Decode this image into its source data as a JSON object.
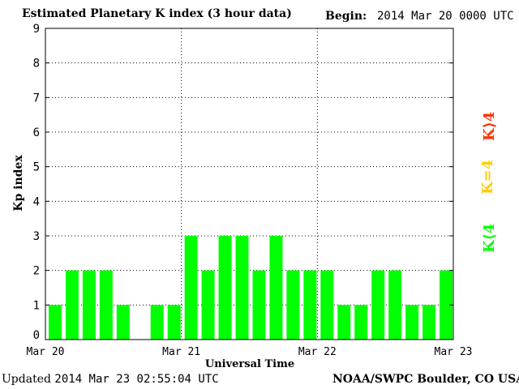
{
  "header": {
    "title": "Estimated Planetary K index (3 hour data)",
    "begin_label": "Begin:",
    "begin_value": "2014 Mar 20 0000 UTC"
  },
  "footer": {
    "updated_label": "Updated",
    "updated_value": "2014 Mar 23 02:55:04 UTC",
    "credit": "NOAA/SWPC Boulder, CO USA"
  },
  "legend": {
    "low": "K⟨4",
    "mid": "K=4",
    "high": "K⟩4"
  },
  "colors": {
    "bar": "#00ff00",
    "low": "#00ff00",
    "mid": "#ffcc00",
    "high": "#ff3300",
    "grid": "#000000"
  },
  "chart_data": {
    "type": "bar",
    "title": "Estimated Planetary K index (3 hour data)",
    "xlabel": "Universal Time",
    "ylabel": "Kp index",
    "ylim": [
      0,
      9
    ],
    "yticks": [
      0,
      1,
      2,
      3,
      4,
      5,
      6,
      7,
      8,
      9
    ],
    "xticks": [
      "Mar 20",
      "Mar 21",
      "Mar 22",
      "Mar 23"
    ],
    "values": [
      1,
      2,
      2,
      2,
      1,
      0,
      1,
      1,
      3,
      2,
      3,
      3,
      2,
      3,
      2,
      2,
      2,
      1,
      1,
      2,
      2,
      1,
      1,
      2
    ]
  }
}
